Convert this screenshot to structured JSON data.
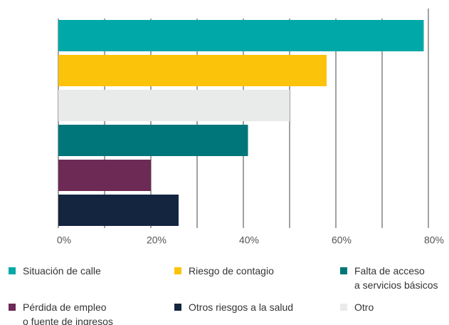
{
  "chart_data": {
    "type": "bar",
    "orientation": "horizontal",
    "series": [
      {
        "name": "Situación de calle",
        "color": "#00a9a7",
        "values": [
          79
        ]
      },
      {
        "name": "Riesgo de contagio",
        "color": "#fcc30b",
        "values": [
          58
        ]
      },
      {
        "name": "Otro",
        "color": "#e8ebe9",
        "values": [
          50
        ]
      },
      {
        "name": "Falta de acceso\na servicios básicos",
        "color": "#00767a",
        "values": [
          41
        ]
      },
      {
        "name": "Pérdida de empleo\no fuente de ingresos",
        "color": "#6c2a55",
        "values": [
          20
        ]
      },
      {
        "name": "Otros riesgos a la salud",
        "color": "#13253f",
        "values": [
          26
        ]
      }
    ],
    "legend_order": [
      0,
      1,
      3,
      4,
      5,
      2
    ],
    "xlim": [
      0,
      80
    ],
    "xticks": [
      {
        "value": 0,
        "label": "0%"
      },
      {
        "value": 20,
        "label": "20%"
      },
      {
        "value": 40,
        "label": "40%"
      },
      {
        "value": 60,
        "label": "60%"
      },
      {
        "value": 80,
        "label": "80%"
      }
    ],
    "minor_xticks": [
      10,
      30,
      50,
      70
    ],
    "grid": true
  }
}
